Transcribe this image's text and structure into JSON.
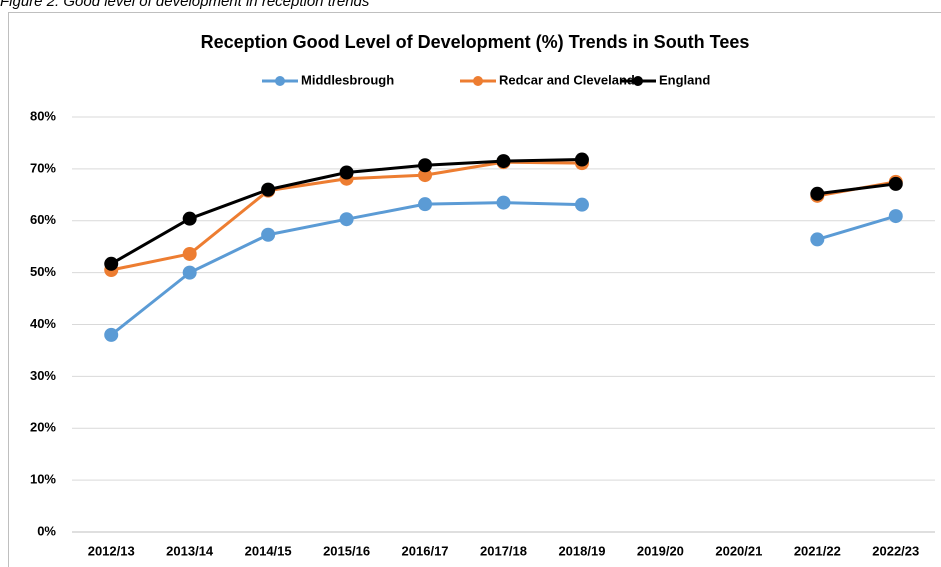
{
  "caption": "Figure 2: Good level of development in reception trends",
  "chart_data": {
    "type": "line",
    "title": "Reception Good Level of Development (%) Trends in South Tees",
    "categories": [
      "2012/13",
      "2013/14",
      "2014/15",
      "2015/16",
      "2016/17",
      "2017/18",
      "2018/19",
      "2019/20",
      "2020/21",
      "2021/22",
      "2022/23"
    ],
    "series": [
      {
        "name": "Middlesbrough",
        "color": "#5b9bd5",
        "values": [
          38,
          50,
          57.3,
          60.3,
          63.2,
          63.5,
          63.1,
          null,
          null,
          56.4,
          60.9
        ]
      },
      {
        "name": "Redcar and Cleveland",
        "color": "#ed7d31",
        "values": [
          50.5,
          53.6,
          65.8,
          68.1,
          68.8,
          71.3,
          71.1,
          null,
          null,
          64.8,
          67.5
        ]
      },
      {
        "name": "England",
        "color": "#000000",
        "values": [
          51.7,
          60.4,
          66,
          69.3,
          70.7,
          71.5,
          71.8,
          null,
          null,
          65.2,
          67.1
        ]
      }
    ],
    "ylim": [
      0,
      80
    ],
    "yticks": [
      {
        "value": 0,
        "label": "0%"
      },
      {
        "value": 10,
        "label": "10%"
      },
      {
        "value": 20,
        "label": "20%"
      },
      {
        "value": 30,
        "label": "30%"
      },
      {
        "value": 40,
        "label": "40%"
      },
      {
        "value": 50,
        "label": "50%"
      },
      {
        "value": 60,
        "label": "60%"
      },
      {
        "value": 70,
        "label": "70%"
      },
      {
        "value": 80,
        "label": "80%"
      }
    ],
    "grid": true,
    "legend": "top"
  }
}
